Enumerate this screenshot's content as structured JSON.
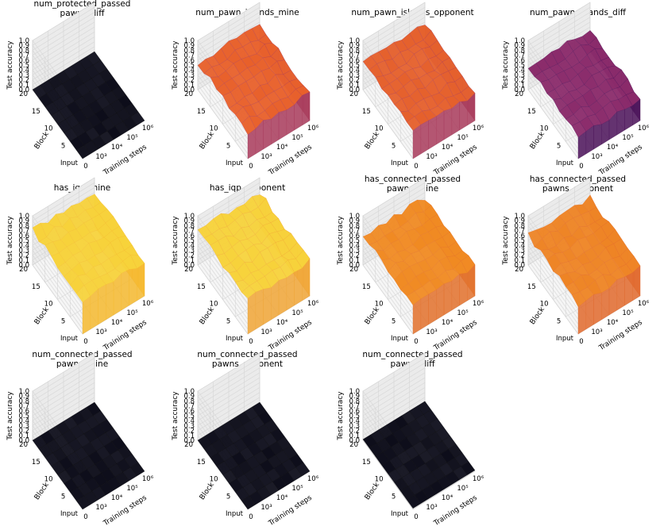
{
  "chart_data": [
    {
      "type": "surface3d",
      "title": "num_protected_passed\npawns_diff",
      "xlabel": "Training steps",
      "ylabel": "Block",
      "zlabel": "Test accuracy",
      "zlim": [
        0.0,
        1.0
      ],
      "x_ticks": [
        "0",
        "10³",
        "10⁴",
        "10⁵",
        "10⁶"
      ],
      "y_ticks": [
        "Input",
        "5",
        "10",
        "15",
        "20"
      ],
      "z_ticks": [
        "0.0",
        "0.1",
        "0.2",
        "0.3",
        "0.4",
        "0.5",
        "0.6",
        "0.7",
        "0.8",
        "0.9",
        "1.0"
      ],
      "surface_level": 0.0,
      "surface_color": "#0d0d1a",
      "edge_color": "#000000"
    },
    {
      "type": "surface3d",
      "title": "num_pawn_islands_mine",
      "xlabel": "Training steps",
      "ylabel": "Block",
      "zlabel": "Test accuracy",
      "zlim": [
        0.0,
        1.0
      ],
      "x_ticks": [
        "0",
        "10³",
        "10⁴",
        "10⁵",
        "10⁶"
      ],
      "y_ticks": [
        "Input",
        "5",
        "10",
        "15",
        "20"
      ],
      "z_ticks": [
        "0.0",
        "0.1",
        "0.2",
        "0.3",
        "0.4",
        "0.5",
        "0.6",
        "0.7",
        "0.8",
        "0.9",
        "1.0"
      ],
      "surface_level": 0.55,
      "surface_color": "#e8602a",
      "edge_color": "#a83a5a"
    },
    {
      "type": "surface3d",
      "title": "num_pawn_islands_opponent",
      "xlabel": "Training steps",
      "ylabel": "Block",
      "zlabel": "Test accuracy",
      "zlim": [
        0.0,
        1.0
      ],
      "x_ticks": [
        "0",
        "10³",
        "10⁴",
        "10⁵",
        "10⁶"
      ],
      "y_ticks": [
        "Input",
        "5",
        "10",
        "15",
        "20"
      ],
      "z_ticks": [
        "0.0",
        "0.1",
        "0.2",
        "0.3",
        "0.4",
        "0.5",
        "0.6",
        "0.7",
        "0.8",
        "0.9",
        "1.0"
      ],
      "surface_level": 0.55,
      "surface_color": "#e5602c",
      "edge_color": "#a83a5a"
    },
    {
      "type": "surface3d",
      "title": "num_pawn_islands_diff",
      "xlabel": "Training steps",
      "ylabel": "Block",
      "zlabel": "Test accuracy",
      "zlim": [
        0.0,
        1.0
      ],
      "x_ticks": [
        "0",
        "10³",
        "10⁴",
        "10⁵",
        "10⁶"
      ],
      "y_ticks": [
        "Input",
        "5",
        "10",
        "15",
        "20"
      ],
      "z_ticks": [
        "0.0",
        "0.1",
        "0.2",
        "0.3",
        "0.4",
        "0.5",
        "0.6",
        "0.7",
        "0.8",
        "0.9",
        "1.0"
      ],
      "surface_level": 0.45,
      "surface_color": "#8a2a6a",
      "edge_color": "#4a1058"
    },
    {
      "type": "surface3d",
      "title": "has_iqp_mine",
      "xlabel": "Training steps",
      "ylabel": "Block",
      "zlabel": "Test accuracy",
      "zlim": [
        0.0,
        1.0
      ],
      "x_ticks": [
        "0",
        "10³",
        "10⁴",
        "10⁵",
        "10⁶"
      ],
      "y_ticks": [
        "Input",
        "5",
        "10",
        "15",
        "20"
      ],
      "z_ticks": [
        "0.0",
        "0.1",
        "0.2",
        "0.3",
        "0.4",
        "0.5",
        "0.6",
        "0.7",
        "0.8",
        "0.9",
        "1.0"
      ],
      "surface_level": 0.7,
      "surface_color": "#f7d23a",
      "edge_color": "#f5b82e"
    },
    {
      "type": "surface3d",
      "title": "has_iqp_opponent",
      "xlabel": "Training steps",
      "ylabel": "Block",
      "zlabel": "Test accuracy",
      "zlim": [
        0.0,
        1.0
      ],
      "x_ticks": [
        "0",
        "10³",
        "10⁴",
        "10⁵",
        "10⁶"
      ],
      "y_ticks": [
        "Input",
        "5",
        "10",
        "15",
        "20"
      ],
      "z_ticks": [
        "0.0",
        "0.1",
        "0.2",
        "0.3",
        "0.4",
        "0.5",
        "0.6",
        "0.7",
        "0.8",
        "0.9",
        "1.0"
      ],
      "surface_level": 0.7,
      "surface_color": "#f7d23a",
      "edge_color": "#f0a535"
    },
    {
      "type": "surface3d",
      "title": "has_connected_passed\npawns_mine",
      "xlabel": "Training steps",
      "ylabel": "Block",
      "zlabel": "Test accuracy",
      "zlim": [
        0.0,
        1.0
      ],
      "x_ticks": [
        "0",
        "10³",
        "10⁴",
        "10⁵",
        "10⁶"
      ],
      "y_ticks": [
        "Input",
        "5",
        "10",
        "15",
        "20"
      ],
      "z_ticks": [
        "0.0",
        "0.1",
        "0.2",
        "0.3",
        "0.4",
        "0.5",
        "0.6",
        "0.7",
        "0.8",
        "0.9",
        "1.0"
      ],
      "surface_level": 0.6,
      "surface_color": "#f08a22",
      "edge_color": "#e2702a"
    },
    {
      "type": "surface3d",
      "title": "has_connected_passed\npawns_opponent",
      "xlabel": "Training steps",
      "ylabel": "Block",
      "zlabel": "Test accuracy",
      "zlim": [
        0.0,
        1.0
      ],
      "x_ticks": [
        "0",
        "10³",
        "10⁴",
        "10⁵",
        "10⁶"
      ],
      "y_ticks": [
        "Input",
        "5",
        "10",
        "15",
        "20"
      ],
      "z_ticks": [
        "0.0",
        "0.1",
        "0.2",
        "0.3",
        "0.4",
        "0.5",
        "0.6",
        "0.7",
        "0.8",
        "0.9",
        "1.0"
      ],
      "surface_level": 0.6,
      "surface_color": "#ee8424",
      "edge_color": "#e0682c"
    },
    {
      "type": "surface3d",
      "title": "num_connected_passed\npawns_mine",
      "xlabel": "Training steps",
      "ylabel": "Block",
      "zlabel": "Test accuracy",
      "zlim": [
        0.0,
        1.0
      ],
      "x_ticks": [
        "0",
        "10³",
        "10⁴",
        "10⁵",
        "10⁶"
      ],
      "y_ticks": [
        "Input",
        "5",
        "10",
        "15",
        "20"
      ],
      "z_ticks": [
        "0.0",
        "0.1",
        "0.2",
        "0.3",
        "0.4",
        "0.5",
        "0.6",
        "0.7",
        "0.8",
        "0.9",
        "1.0"
      ],
      "surface_level": 0.0,
      "surface_color": "#0d0d1a",
      "edge_color": "#000000"
    },
    {
      "type": "surface3d",
      "title": "num_connected_passed\npawns_opponent",
      "xlabel": "Training steps",
      "ylabel": "Block",
      "zlabel": "Test accuracy",
      "zlim": [
        0.0,
        1.0
      ],
      "x_ticks": [
        "0",
        "10³",
        "10⁴",
        "10⁵",
        "10⁶"
      ],
      "y_ticks": [
        "Input",
        "5",
        "10",
        "15",
        "20"
      ],
      "z_ticks": [
        "0.0",
        "0.1",
        "0.2",
        "0.3",
        "0.4",
        "0.5",
        "0.6",
        "0.7",
        "0.8",
        "0.9",
        "1.0"
      ],
      "surface_level": 0.0,
      "surface_color": "#0d0d1a",
      "edge_color": "#000000"
    },
    {
      "type": "surface3d",
      "title": "num_connected_passed\npawns_diff",
      "xlabel": "Training steps",
      "ylabel": "Block",
      "zlabel": "Test accuracy",
      "zlim": [
        0.0,
        1.0
      ],
      "x_ticks": [
        "0",
        "10³",
        "10⁴",
        "10⁵",
        "10⁶"
      ],
      "y_ticks": [
        "Input",
        "5",
        "10",
        "15",
        "20"
      ],
      "z_ticks": [
        "0.0",
        "0.1",
        "0.2",
        "0.3",
        "0.4",
        "0.5",
        "0.6",
        "0.7",
        "0.8",
        "0.9",
        "1.0"
      ],
      "surface_level": 0.02,
      "surface_color": "#0d0d1a",
      "edge_color": "#000000"
    }
  ]
}
